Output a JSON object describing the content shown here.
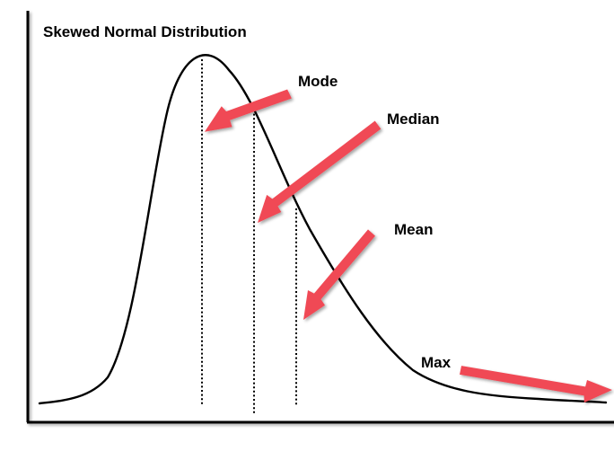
{
  "title": "Skewed Normal Distribution",
  "labels": {
    "mode": "Mode",
    "median": "Median",
    "mean": "Mean",
    "max": "Max"
  },
  "colors": {
    "curve": "#000000",
    "axes": "#000000",
    "guide_lines": "#000000",
    "arrows": "#f04a55",
    "background": "#ffffff"
  }
}
